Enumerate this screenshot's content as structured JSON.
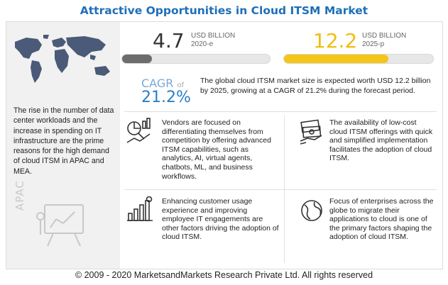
{
  "header": {
    "title": "Attractive Opportunities in Cloud ITSM Market"
  },
  "left_panel": {
    "description": "The rise in the number of data center workloads and the increase in spending on IT infrastructure are the prime reasons for the high demand of cloud ITSM in APAC and MEA.",
    "region_label": "APAC",
    "map_icon": "world-map-icon",
    "region_icon": "analytics-board-icon"
  },
  "stats": [
    {
      "value": "4.7",
      "unit": "USD BILLION",
      "period": "2020-e",
      "fill_fraction": 0.2,
      "color": "#6c6c6c"
    },
    {
      "value": "12.2",
      "unit": "USD BILLION",
      "period": "2025-p",
      "fill_fraction": 0.7,
      "color": "#f5c518"
    }
  ],
  "cagr": {
    "label": "CAGR",
    "of_text": "of",
    "value": "21.2%",
    "summary": "The global cloud ITSM market size is expected worth USD 12.2 billion by 2025, growing at a CAGR of 21.2% during the forecast period."
  },
  "cards": [
    {
      "icon": "analytics-chart-icon",
      "text": "Vendors are focused on differentiating themselves from competition by offering advanced ITSM capabilities, such as analytics, AI, virtual agents, chatbots, ML, and business workflows."
    },
    {
      "icon": "money-cash-icon",
      "text": "The availability of low-cost cloud ITSM offerings with quick and simplified implementation facilitates the adoption of cloud ITSM."
    },
    {
      "icon": "growth-bars-icon",
      "text": "Enhancing customer usage experience and improving employee IT engagements are other factors driving the adoption of cloud ITSM."
    },
    {
      "icon": "globe-cloud-icon",
      "text": "Focus of enterprises across the globe to migrate their applications to cloud is one of the primary factors shaping the adoption of cloud ITSM."
    }
  ],
  "colors": {
    "title": "#1e6fb8",
    "accent_blue": "#2a7fc5",
    "bar_yellow": "#f5c518",
    "bar_gray": "#6c6c6c"
  },
  "footer": {
    "copyright": "© 2009 - 2020 MarketsandMarkets Research Private Ltd. All rights reserved"
  }
}
